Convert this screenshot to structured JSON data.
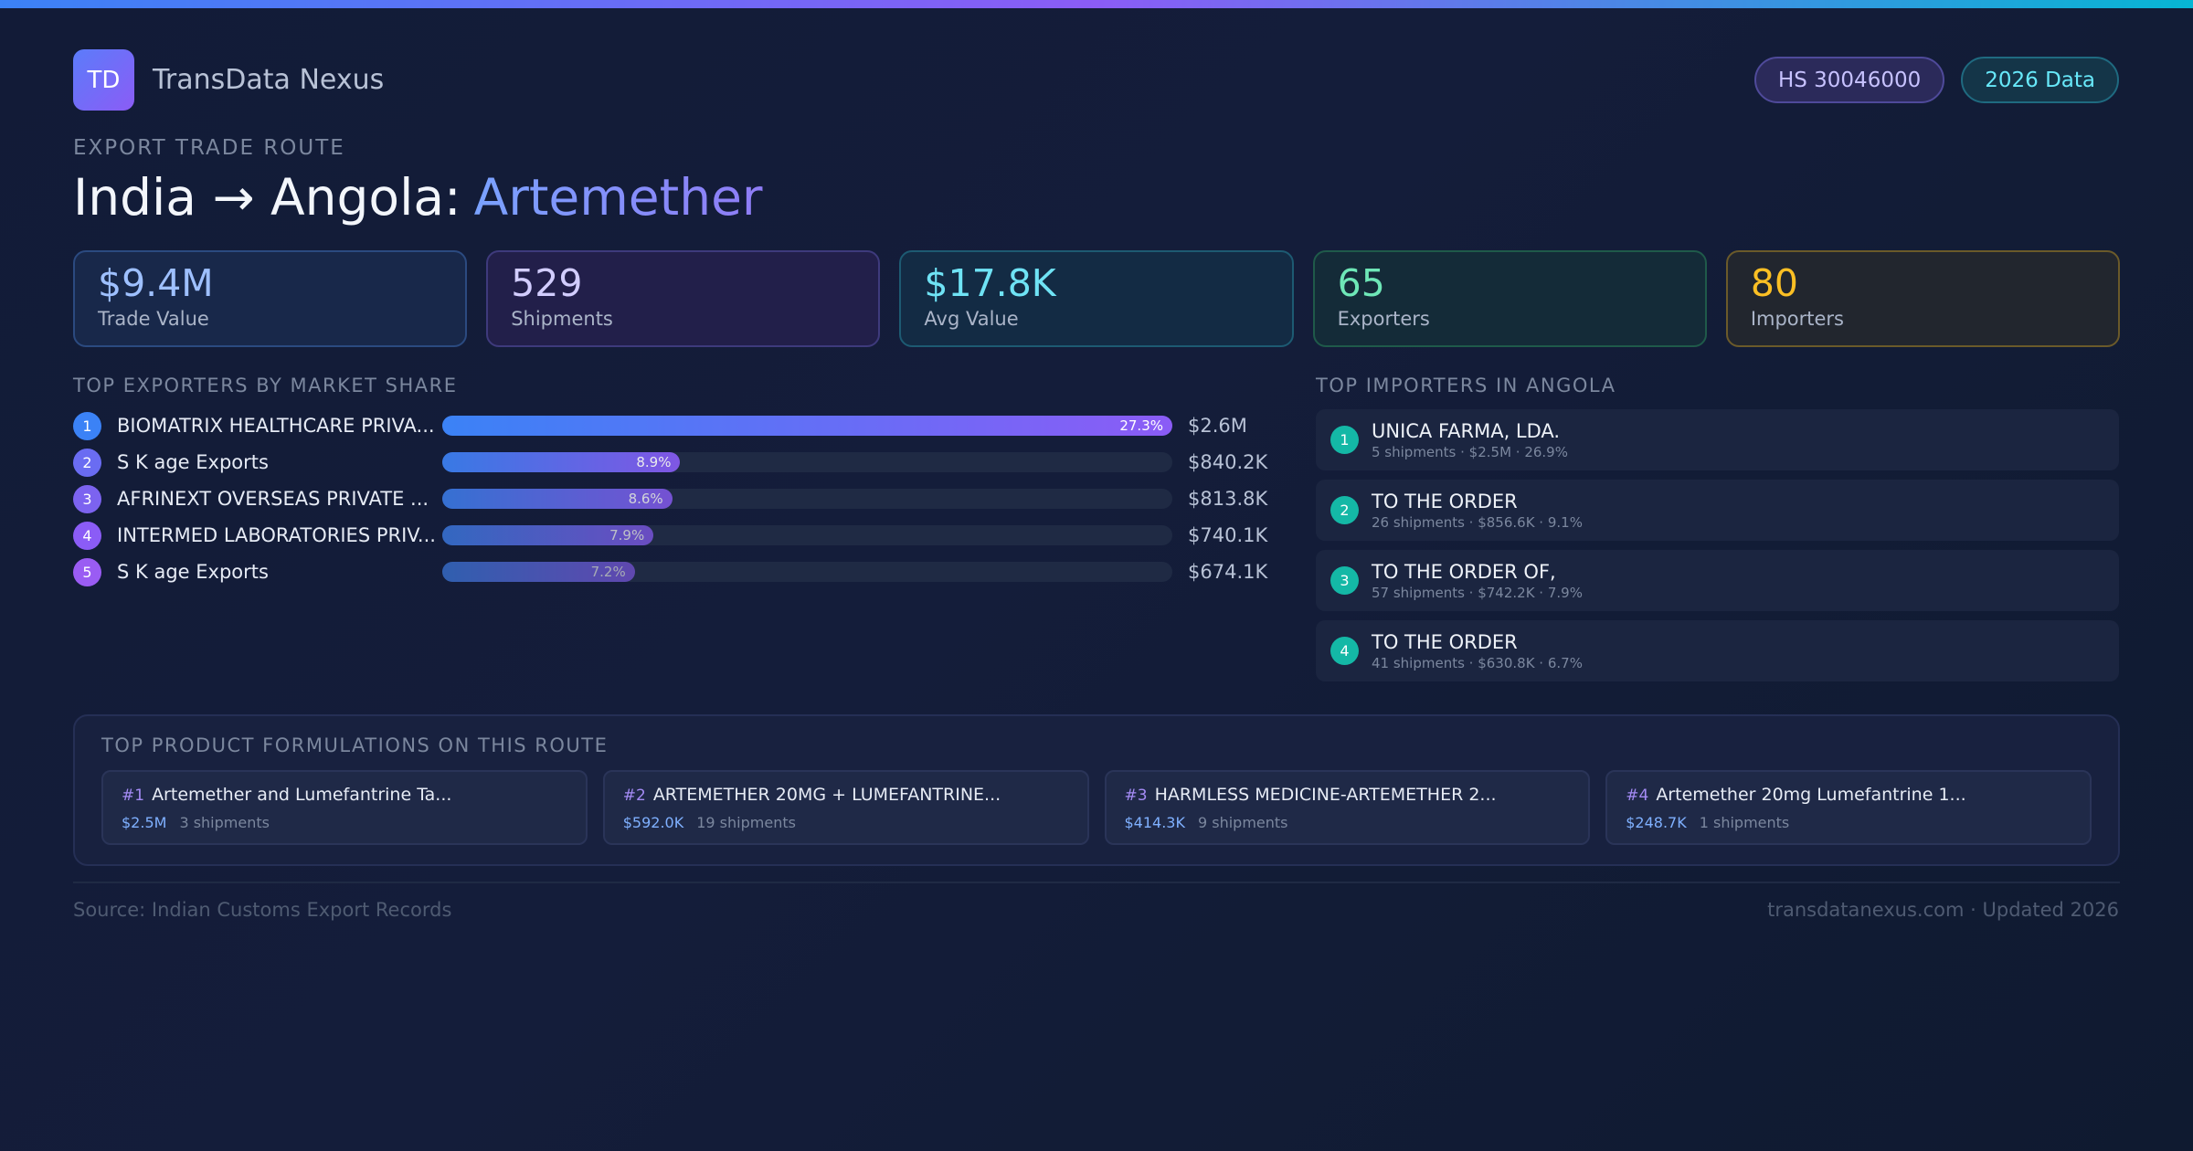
{
  "brand": {
    "logo": "TD",
    "name": "TransData Nexus"
  },
  "badges": [
    "HS 30046000",
    "2026 Data"
  ],
  "header": {
    "eyebrow": "EXPORT TRADE ROUTE",
    "title": "India → Angola:",
    "highlight": "Artemether"
  },
  "stats": [
    {
      "value": "$9.4M",
      "label": "Trade Value"
    },
    {
      "value": "529",
      "label": "Shipments"
    },
    {
      "value": "$17.8K",
      "label": "Avg Value"
    },
    {
      "value": "65",
      "label": "Exporters"
    },
    {
      "value": "80",
      "label": "Importers"
    }
  ],
  "exporters": {
    "title": "TOP EXPORTERS BY MARKET SHARE",
    "rows": [
      {
        "rank": 1,
        "name": "BIOMATRIX HEALTHCARE PRIVA...",
        "share": {
          "value": 27.3,
          "label": "27.3%"
        },
        "value": "$2.6M"
      },
      {
        "rank": 2,
        "name": "S K age Exports",
        "share": {
          "value": 8.9,
          "label": "8.9%"
        },
        "value": "$840.2K"
      },
      {
        "rank": 3,
        "name": "AFRINEXT OVERSEAS PRIVATE ...",
        "share": {
          "value": 8.6,
          "label": "8.6%"
        },
        "value": "$813.8K"
      },
      {
        "rank": 4,
        "name": "INTERMED LABORATORIES PRIV...",
        "share": {
          "value": 7.9,
          "label": "7.9%"
        },
        "value": "$740.1K"
      },
      {
        "rank": 5,
        "name": "S K age Exports",
        "share": {
          "value": 7.2,
          "label": "7.2%"
        },
        "value": "$674.1K"
      }
    ]
  },
  "importers": {
    "title": "TOP IMPORTERS IN ANGOLA",
    "rows": [
      {
        "rank": 1,
        "name": "UNICA FARMA, LDA.",
        "meta": "5 shipments · $2.5M · 26.9%"
      },
      {
        "rank": 2,
        "name": "TO THE ORDER",
        "meta": "26 shipments · $856.6K · 9.1%"
      },
      {
        "rank": 3,
        "name": "TO THE ORDER OF,",
        "meta": "57 shipments · $742.2K · 7.9%"
      },
      {
        "rank": 4,
        "name": "TO THE ORDER",
        "meta": "41 shipments · $630.8K · 6.7%"
      }
    ]
  },
  "formulations": {
    "title": "TOP PRODUCT FORMULATIONS ON THIS ROUTE",
    "items": [
      {
        "rank": "#1",
        "name": "Artemether and Lumefantrine Ta...",
        "value": "$2.5M",
        "shipments": "3 shipments"
      },
      {
        "rank": "#2",
        "name": "ARTEMETHER 20MG + LUMEFANTRINE...",
        "value": "$592.0K",
        "shipments": "19 shipments"
      },
      {
        "rank": "#3",
        "name": "HARMLESS MEDICINE-ARTEMETHER 2...",
        "value": "$414.3K",
        "shipments": "9 shipments"
      },
      {
        "rank": "#4",
        "name": "Artemether 20mg Lumefantrine 1...",
        "value": "$248.7K",
        "shipments": "1 shipments"
      }
    ]
  },
  "footer": {
    "source": "Source: Indian Customs Export Records",
    "site": "transdatanexus.com · Updated 2026"
  }
}
